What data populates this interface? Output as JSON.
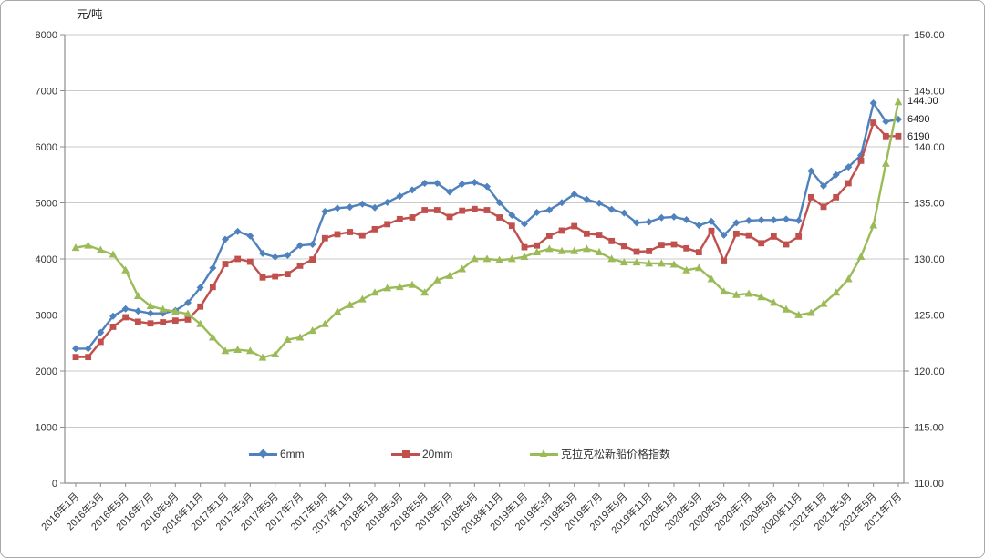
{
  "chart_data": {
    "type": "line",
    "title": "",
    "unit_label": "元/吨",
    "left_axis": {
      "min": 0,
      "max": 8000,
      "step": 1000,
      "tick_labels": [
        "0",
        "1000",
        "2000",
        "3000",
        "4000",
        "5000",
        "6000",
        "7000",
        "8000"
      ]
    },
    "right_axis": {
      "min": 110,
      "max": 150,
      "step": 5,
      "tick_labels": [
        "110.00",
        "115.00",
        "120.00",
        "125.00",
        "130.00",
        "135.00",
        "140.00",
        "145.00",
        "150.00"
      ]
    },
    "x_tick_labels": [
      "2016年1月",
      "2016年3月",
      "2016年5月",
      "2016年7月",
      "2016年9月",
      "2016年11月",
      "2017年1月",
      "2017年3月",
      "2017年5月",
      "2017年7月",
      "2017年9月",
      "2017年11月",
      "2018年1月",
      "2018年3月",
      "2018年5月",
      "2018年7月",
      "2018年9月",
      "2018年11月",
      "2019年1月",
      "2019年3月",
      "2019年5月",
      "2019年7月",
      "2019年9月",
      "2019年11月",
      "2020年1月",
      "2020年3月",
      "2020年5月",
      "2020年7月",
      "2020年9月",
      "2020年11月",
      "2021年1月",
      "2021年3月",
      "2021年5月",
      "2021年7月"
    ],
    "x_label_every_n_points": 2,
    "n_points": 67,
    "grid_on": true,
    "legend_position": "inside-bottom",
    "series": [
      {
        "key": "6mm",
        "name": "6mm",
        "axis": "left",
        "color": "#4F81BD",
        "marker": "diamond",
        "values": [
          2400,
          2400,
          2690,
          2980,
          3110,
          3070,
          3030,
          3030,
          3080,
          3220,
          3490,
          3840,
          4350,
          4490,
          4410,
          4100,
          4035,
          4065,
          4240,
          4260,
          4845,
          4905,
          4925,
          4980,
          4915,
          5010,
          5120,
          5230,
          5350,
          5350,
          5195,
          5335,
          5365,
          5290,
          5005,
          4780,
          4625,
          4830,
          4875,
          5005,
          5155,
          5060,
          4995,
          4885,
          4820,
          4645,
          4660,
          4735,
          4750,
          4700,
          4600,
          4670,
          4425,
          4645,
          4685,
          4695,
          4695,
          4710,
          4685,
          5570,
          5300,
          5500,
          5640,
          5850,
          6780,
          6450,
          6490
        ]
      },
      {
        "key": "20mm",
        "name": "20mm",
        "axis": "left",
        "color": "#C0504D",
        "marker": "square",
        "values": [
          2250,
          2250,
          2520,
          2790,
          2960,
          2880,
          2850,
          2870,
          2900,
          2920,
          3150,
          3500,
          3910,
          4000,
          3950,
          3670,
          3690,
          3730,
          3880,
          3990,
          4370,
          4440,
          4480,
          4420,
          4530,
          4620,
          4710,
          4740,
          4870,
          4870,
          4750,
          4860,
          4890,
          4870,
          4740,
          4590,
          4210,
          4240,
          4415,
          4505,
          4585,
          4450,
          4430,
          4320,
          4230,
          4130,
          4140,
          4250,
          4260,
          4190,
          4120,
          4500,
          3960,
          4450,
          4420,
          4280,
          4400,
          4260,
          4400,
          5100,
          4930,
          5100,
          5350,
          5750,
          6430,
          6190,
          6190
        ]
      },
      {
        "key": "clarkson-index",
        "name": "克拉克松新船价格指数",
        "axis": "right",
        "color": "#9BBB59",
        "marker": "triangle",
        "values": [
          131.0,
          131.2,
          130.8,
          130.4,
          129.0,
          126.7,
          125.8,
          125.5,
          125.3,
          125.1,
          124.2,
          123.0,
          121.8,
          121.9,
          121.8,
          121.2,
          121.5,
          122.8,
          123.0,
          123.6,
          124.2,
          125.3,
          125.9,
          126.4,
          127.0,
          127.4,
          127.5,
          127.7,
          127.0,
          128.1,
          128.5,
          129.1,
          130.0,
          130.0,
          129.9,
          130.0,
          130.2,
          130.6,
          130.9,
          130.7,
          130.7,
          130.9,
          130.6,
          130.0,
          129.7,
          129.7,
          129.6,
          129.6,
          129.5,
          129.0,
          129.2,
          128.2,
          127.1,
          126.8,
          126.9,
          126.6,
          126.1,
          125.5,
          125.0,
          125.2,
          126.0,
          127.0,
          128.2,
          130.2,
          133.0,
          138.5,
          144.0
        ]
      }
    ],
    "end_labels": [
      {
        "series": "clarkson-index",
        "text": "144.00"
      },
      {
        "series": "6mm",
        "text": "6490"
      },
      {
        "series": "20mm",
        "text": "6190"
      }
    ],
    "colors": {
      "grid": "#c9c9c9",
      "axis": "#8e8e8e",
      "tick_text": "#333333"
    }
  }
}
